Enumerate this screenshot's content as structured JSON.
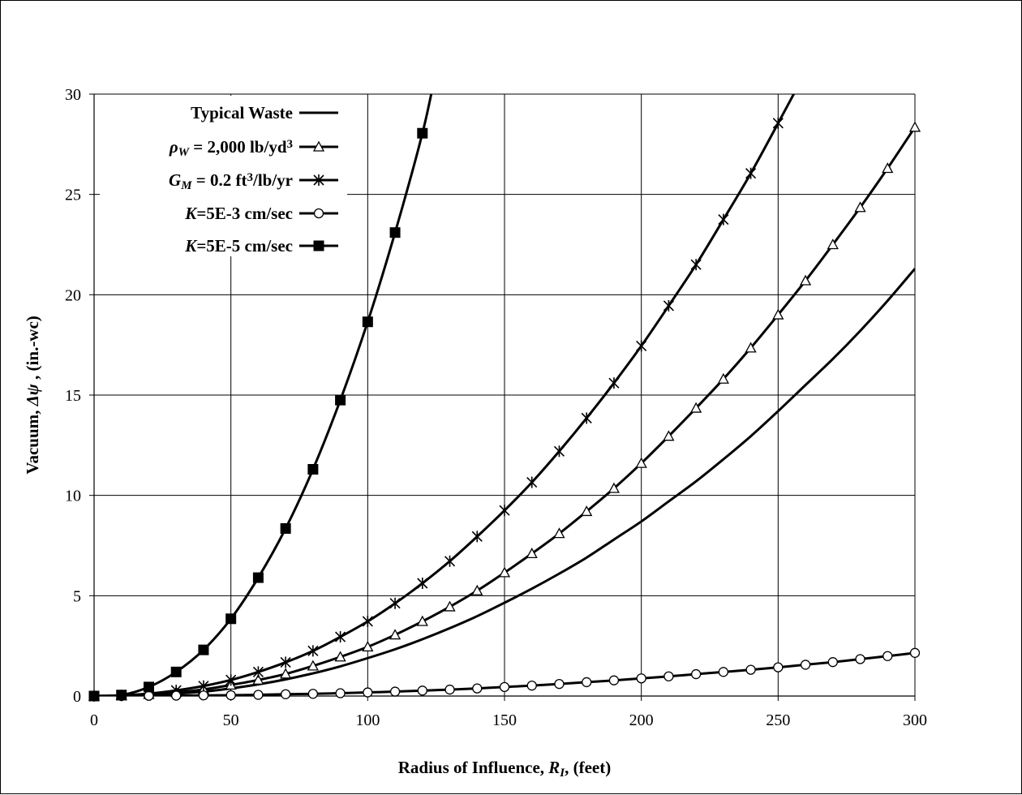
{
  "chart_data": {
    "type": "line",
    "title": "",
    "xlabel": {
      "text": "Radius of Influence, ",
      "symbol": "R",
      "subscript": "I",
      "suffix": ", (feet)"
    },
    "ylabel": {
      "text": "Vacuum, ",
      "symbol": "Δψ",
      "suffix": " , (in.-wc)"
    },
    "xlim": [
      0,
      300
    ],
    "ylim": [
      0,
      30
    ],
    "xticks": [
      0,
      50,
      100,
      150,
      200,
      250,
      300
    ],
    "yticks": [
      0,
      5,
      10,
      15,
      20,
      25,
      30
    ],
    "grid": true,
    "legend_position": "top-left",
    "series": [
      {
        "name": "Typical Waste",
        "legend": [
          {
            "t": "Typical Waste",
            "b": true
          }
        ],
        "marker": "none",
        "x": [
          0,
          10,
          20,
          30,
          40,
          50,
          60,
          70,
          80,
          90,
          100,
          110,
          120,
          130,
          140,
          150,
          160,
          170,
          180,
          190,
          200,
          210,
          220,
          230,
          240,
          250,
          260,
          270,
          280,
          290,
          300
        ],
        "y": [
          0,
          0.02,
          0.06,
          0.12,
          0.22,
          0.38,
          0.58,
          0.83,
          1.13,
          1.48,
          1.89,
          2.33,
          2.83,
          3.38,
          3.98,
          4.65,
          5.35,
          6.1,
          6.9,
          7.8,
          8.7,
          9.7,
          10.7,
          11.8,
          12.95,
          14.2,
          15.5,
          16.8,
          18.2,
          19.7,
          21.3
        ]
      },
      {
        "name": "ρW = 2,000 lb/yd3",
        "legend": [
          {
            "t": "ρ",
            "i": true
          },
          {
            "t": "W",
            "i": true,
            "sub": true
          },
          {
            "t": " = 2,000 lb/yd"
          },
          {
            "t": "3",
            "sup": true
          }
        ],
        "marker": "triangle",
        "x": [
          0,
          10,
          20,
          30,
          40,
          50,
          60,
          70,
          80,
          90,
          100,
          110,
          120,
          130,
          140,
          150,
          160,
          170,
          180,
          190,
          200,
          210,
          220,
          230,
          240,
          250,
          260,
          270,
          280,
          290,
          300
        ],
        "y": [
          0,
          0.02,
          0.08,
          0.18,
          0.33,
          0.55,
          0.8,
          1.1,
          1.5,
          1.95,
          2.45,
          3.05,
          3.72,
          4.45,
          5.25,
          6.15,
          7.1,
          8.1,
          9.2,
          10.35,
          11.6,
          12.95,
          14.35,
          15.8,
          17.35,
          19.0,
          20.7,
          22.5,
          24.35,
          26.3,
          28.35
        ]
      },
      {
        "name": "GM = 0.2 ft3/lb/yr",
        "legend": [
          {
            "t": "G",
            "i": true
          },
          {
            "t": "M",
            "i": true,
            "sub": true
          },
          {
            "t": " = 0.2 ft"
          },
          {
            "t": "3",
            "sup": true
          },
          {
            "t": "/lb/yr"
          }
        ],
        "marker": "star",
        "x": [
          0,
          10,
          20,
          30,
          40,
          50,
          60,
          70,
          80,
          90,
          100,
          110,
          120,
          130,
          140,
          150,
          160,
          170,
          180,
          190,
          200,
          210,
          220,
          230,
          240,
          250
        ],
        "y": [
          0,
          0.03,
          0.12,
          0.28,
          0.5,
          0.8,
          1.2,
          1.68,
          2.25,
          2.95,
          3.72,
          4.62,
          5.62,
          6.72,
          7.95,
          9.25,
          10.65,
          12.2,
          13.85,
          15.6,
          17.45,
          19.45,
          21.5,
          23.75,
          26.05,
          28.55
        ],
        "curve_end": [
          [
            260,
            31.1
          ]
        ]
      },
      {
        "name": "K=5E-3 cm/sec",
        "legend": [
          {
            "t": "K",
            "i": true
          },
          {
            "t": "=5E-3 cm/sec"
          }
        ],
        "marker": "circle",
        "x": [
          0,
          10,
          20,
          30,
          40,
          50,
          60,
          70,
          80,
          90,
          100,
          110,
          120,
          130,
          140,
          150,
          160,
          170,
          180,
          190,
          200,
          210,
          220,
          230,
          240,
          250,
          260,
          270,
          280,
          290,
          300
        ],
        "y": [
          0,
          0.0,
          0.01,
          0.02,
          0.03,
          0.04,
          0.06,
          0.09,
          0.11,
          0.14,
          0.18,
          0.22,
          0.27,
          0.32,
          0.38,
          0.45,
          0.52,
          0.6,
          0.69,
          0.78,
          0.88,
          0.98,
          1.09,
          1.2,
          1.31,
          1.43,
          1.56,
          1.69,
          1.84,
          1.99,
          2.15
        ]
      },
      {
        "name": "K=5E-5 cm/sec",
        "legend": [
          {
            "t": "K",
            "i": true
          },
          {
            "t": "=5E-5 cm/sec"
          }
        ],
        "marker": "square",
        "x": [
          0,
          10,
          20,
          30,
          40,
          50,
          60,
          70,
          80,
          90,
          100,
          110,
          120
        ],
        "y": [
          0,
          0.05,
          0.45,
          1.2,
          2.3,
          3.85,
          5.9,
          8.35,
          11.3,
          14.75,
          18.65,
          23.1,
          28.05
        ],
        "curve_end": [
          [
            125,
            31.2
          ]
        ]
      }
    ]
  }
}
